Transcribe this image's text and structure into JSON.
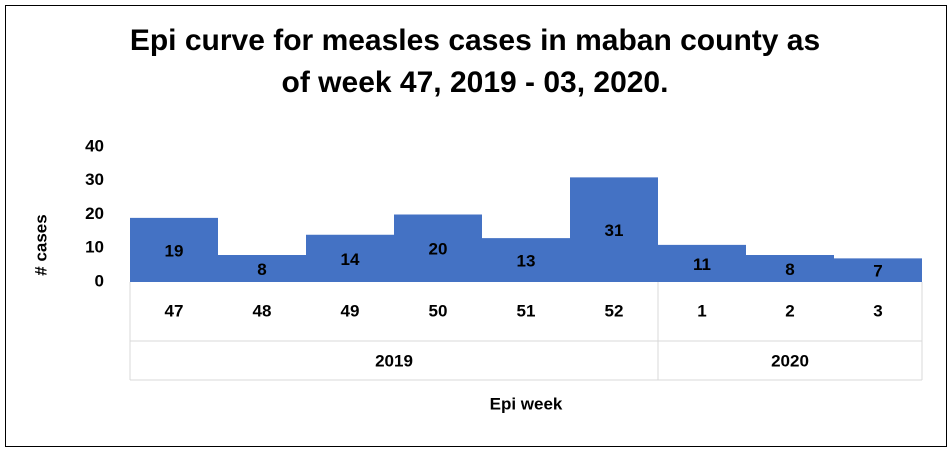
{
  "chart_data": {
    "type": "bar",
    "title": "Epi curve for measles cases in maban county as of week 47, 2019 - 03, 2020.",
    "x_label": "Epi week",
    "y_label": "# cases",
    "categories": [
      "47",
      "48",
      "49",
      "50",
      "51",
      "52",
      "1",
      "2",
      "3"
    ],
    "category_years": [
      "2019",
      "2019",
      "2019",
      "2019",
      "2019",
      "2019",
      "2020",
      "2020",
      "2020"
    ],
    "values": [
      19,
      8,
      14,
      20,
      13,
      31,
      11,
      8,
      7
    ],
    "color": "#4472c4",
    "ylim": [
      0,
      40
    ],
    "yticks": [
      0,
      10,
      20,
      30,
      40
    ],
    "grid": false
  }
}
